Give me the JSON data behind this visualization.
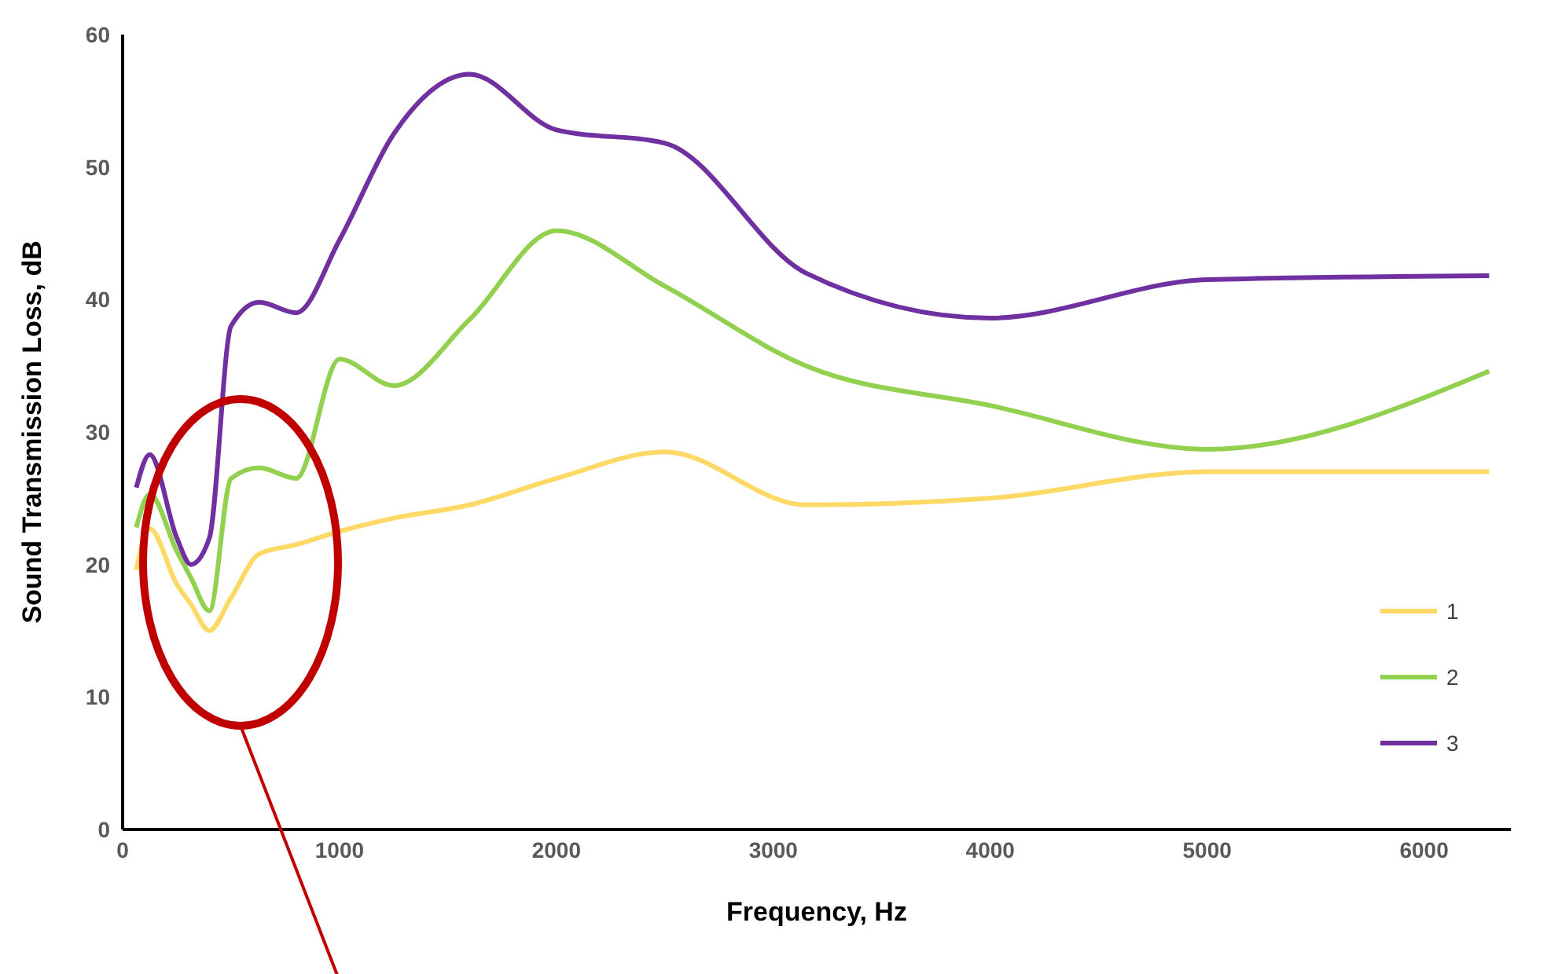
{
  "chart_data": {
    "type": "line",
    "xlabel": "Frequency, Hz",
    "ylabel": "Sound Transmission Loss, dB",
    "x": [
      63,
      125,
      250,
      315,
      400,
      500,
      630,
      800,
      1000,
      1250,
      1600,
      2000,
      2500,
      3150,
      4000,
      5000,
      6300
    ],
    "series": [
      {
        "name": "1",
        "color": "#ffd966",
        "values": [
          19.6,
          22.7,
          18.5,
          17,
          15,
          17.5,
          20.8,
          21.5,
          22.5,
          23.5,
          24.5,
          26.5,
          28.5,
          24.5,
          25,
          27,
          27
        ]
      },
      {
        "name": "2",
        "color": "#92d050",
        "values": [
          22.8,
          25.3,
          21,
          19,
          16.5,
          26.5,
          27.3,
          26.5,
          35.5,
          33.5,
          38.5,
          45.2,
          41,
          35,
          32,
          28.7,
          34.6
        ]
      },
      {
        "name": "3",
        "color": "#7030a0",
        "values": [
          25.8,
          28.3,
          22,
          20,
          22,
          38,
          39.8,
          39,
          44.5,
          52.5,
          57,
          52.8,
          51.8,
          42,
          38.6,
          41.5,
          41.8
        ]
      }
    ],
    "xlim": [
      0,
      6400
    ],
    "xticks": [
      0,
      1000,
      2000,
      3000,
      4000,
      5000,
      6000
    ],
    "ylim": [
      0,
      60
    ],
    "yticks": [
      0,
      10,
      20,
      30,
      40,
      50,
      60
    ],
    "grid": false,
    "legend": "right",
    "marker": "none",
    "line_style": "solid"
  }
}
